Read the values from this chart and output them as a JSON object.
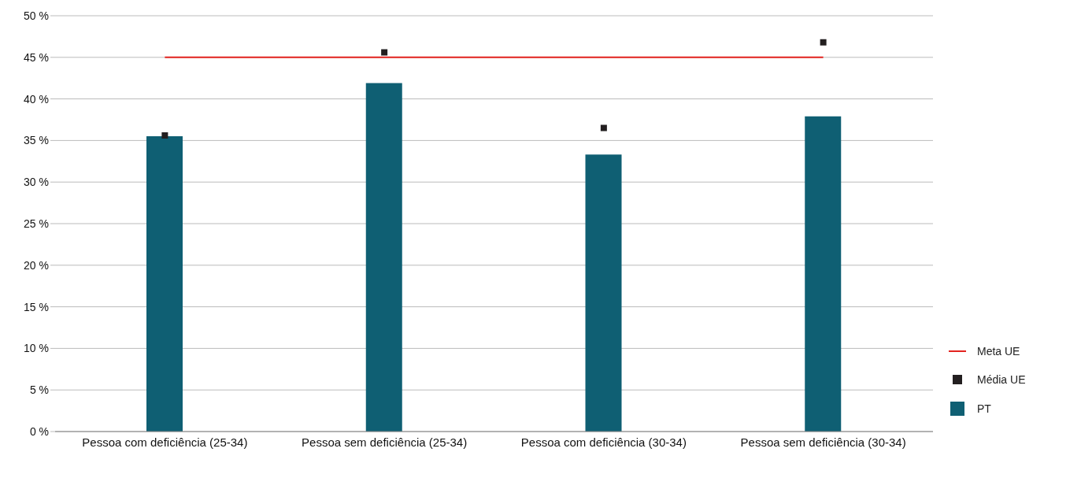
{
  "chart_data": {
    "type": "bar",
    "categories": [
      "Pessoa com deficiência (25-34)",
      "Pessoa sem deficiência (25-34)",
      "Pessoa com deficiência (30-34)",
      "Pessoa sem deficiência (30-34)"
    ],
    "series": [
      {
        "name": "Meta UE",
        "type": "line",
        "color": "#e3231f",
        "values": [
          45,
          45,
          45,
          45
        ]
      },
      {
        "name": "Média UE",
        "type": "scatter",
        "marker": "square",
        "color": "#231f20",
        "values": [
          35.6,
          45.6,
          36.5,
          46.8
        ]
      },
      {
        "name": "PT",
        "color": "#0f5f73",
        "values": [
          35.5,
          41.9,
          33.3,
          37.9
        ]
      }
    ],
    "ylim": [
      0,
      50
    ],
    "yticks": [
      {
        "value": 0,
        "label": "0 %"
      },
      {
        "value": 5,
        "label": "5 %"
      },
      {
        "value": 10,
        "label": "10 %"
      },
      {
        "value": 15,
        "label": "15 %"
      },
      {
        "value": 20,
        "label": "20 %"
      },
      {
        "value": 25,
        "label": "25 %"
      },
      {
        "value": 30,
        "label": "30 %"
      },
      {
        "value": 35,
        "label": "35 %"
      },
      {
        "value": 40,
        "label": "40 %"
      },
      {
        "value": 45,
        "label": "45 %"
      },
      {
        "value": 50,
        "label": "50 %"
      }
    ],
    "grid": "y",
    "legend": "right"
  }
}
